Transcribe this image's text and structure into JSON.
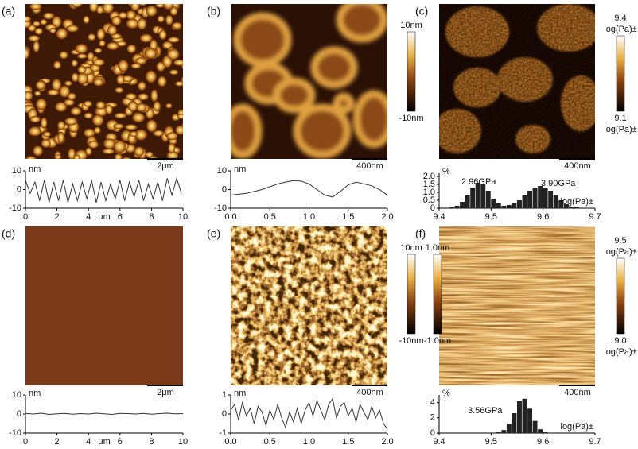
{
  "panels": [
    {
      "label": "(a)",
      "scale_bar": "2μm",
      "chart": {
        "type": "line",
        "y_label": "nm",
        "x_label": "μm",
        "color": "#333333",
        "x": [
          0,
          0.3,
          0.6,
          0.9,
          1.2,
          1.5,
          1.8,
          2.1,
          2.4,
          2.7,
          3,
          3.3,
          3.6,
          3.9,
          4.2,
          4.5,
          4.8,
          5.1,
          5.4,
          5.7,
          6,
          6.3,
          6.6,
          6.9,
          7.2,
          7.5,
          7.8,
          8.1,
          8.4,
          8.7,
          9,
          9.3,
          9.6,
          9.9
        ],
        "values": [
          5,
          -2,
          4,
          -6,
          5,
          -7,
          4,
          -6,
          5,
          -7,
          3,
          -6,
          4,
          -5,
          5,
          -7,
          4,
          -6,
          3,
          -5,
          5,
          -6,
          4,
          -4,
          5,
          -6,
          3,
          -5,
          4,
          -6,
          6,
          -3,
          6,
          -2
        ],
        "xlim": [
          0,
          10
        ],
        "ylim": [
          -10,
          10
        ],
        "xticks": [
          0,
          2,
          4,
          6,
          8,
          10
        ],
        "yticks": [
          10,
          0,
          -10
        ]
      }
    },
    {
      "label": "(b)",
      "scale_bar": "400nm",
      "chart": {
        "type": "line",
        "y_label": "nm",
        "color": "#333333",
        "x": [
          0,
          0.1,
          0.2,
          0.3,
          0.4,
          0.5,
          0.6,
          0.7,
          0.8,
          0.9,
          1,
          1.1,
          1.2,
          1.3,
          1.4,
          1.5,
          1.6,
          1.7,
          1.8,
          1.9,
          2
        ],
        "values": [
          -3,
          -2.5,
          -2,
          -1,
          0,
          1.5,
          3,
          4,
          4.8,
          4.5,
          3,
          0,
          -3,
          -4,
          -1,
          2.5,
          4,
          3,
          2,
          0,
          -3
        ],
        "xlim": [
          0,
          2
        ],
        "ylim": [
          -10,
          10
        ],
        "xticks": [
          {
            "value": 0,
            "label": "0.0"
          },
          0.5,
          {
            "value": 1,
            "label": "1.0"
          },
          1.5,
          {
            "value": 2,
            "label": "2.0"
          }
        ],
        "yticks": [
          10,
          0,
          -10
        ]
      }
    },
    {
      "label": "(c)",
      "scale_bar": "400nm",
      "chart": {
        "type": "histogram",
        "y_label": "%",
        "x_label": "log(Pa)±",
        "color": "#222222",
        "annotations": [
          "2.96GPa",
          "3.90GPa"
        ],
        "bins": [
          9.4,
          9.41,
          9.42,
          9.43,
          9.44,
          9.45,
          9.46,
          9.47,
          9.48,
          9.49,
          9.5,
          9.51,
          9.52,
          9.53,
          9.54,
          9.55,
          9.56,
          9.57,
          9.58,
          9.59,
          9.6,
          9.61,
          9.62,
          9.63,
          9.64,
          9.65,
          9.66,
          9.67,
          9.68,
          9.69,
          9.7
        ],
        "values": [
          0,
          0,
          0.05,
          0.15,
          0.4,
          0.8,
          1.3,
          1.6,
          1.5,
          1.1,
          0.6,
          0.3,
          0.15,
          0.2,
          0.3,
          0.5,
          0.8,
          1.1,
          1.3,
          1.4,
          1.3,
          1.1,
          0.8,
          0.5,
          0.25,
          0.1,
          0.05,
          0,
          0,
          0
        ],
        "xlim": [
          9.4,
          9.7
        ],
        "ylim": [
          0,
          2.2
        ],
        "xticks": [
          9.4,
          9.5,
          9.6,
          9.7
        ],
        "yticks": [
          0,
          0.5,
          {
            "value": 1,
            "label": "1.0"
          },
          1.5,
          {
            "value": 2,
            "label": "2.0"
          }
        ]
      }
    },
    {
      "label": "(d)",
      "scale_bar": "2μm",
      "chart": {
        "type": "line",
        "y_label": "nm",
        "x_label": "μm",
        "color": "#333333",
        "x": [
          0,
          0.5,
          1,
          1.5,
          2,
          2.5,
          3,
          3.5,
          4,
          4.5,
          5,
          5.5,
          6,
          6.5,
          7,
          7.5,
          8,
          8.5,
          9,
          9.5,
          10
        ],
        "values": [
          0.3,
          0,
          0.4,
          -0.2,
          0.1,
          0.3,
          -0.1,
          0.2,
          0,
          0.4,
          0.1,
          -0.2,
          0.3,
          0.2,
          0,
          0.3,
          -0.1,
          0.2,
          0.4,
          0.1,
          0.2
        ],
        "xlim": [
          0,
          10
        ],
        "ylim": [
          -10,
          10
        ],
        "xticks": [
          0,
          2,
          4,
          6,
          8,
          10
        ],
        "yticks": [
          10,
          0,
          -10
        ]
      }
    },
    {
      "label": "(e)",
      "scale_bar": "400nm",
      "chart": {
        "type": "line",
        "y_label": "nm",
        "color": "#333333",
        "x": [
          0,
          0.05,
          0.1,
          0.15,
          0.2,
          0.25,
          0.3,
          0.35,
          0.4,
          0.45,
          0.5,
          0.55,
          0.6,
          0.65,
          0.7,
          0.75,
          0.8,
          0.85,
          0.9,
          0.95,
          1,
          1.05,
          1.1,
          1.15,
          1.2,
          1.25,
          1.3,
          1.35,
          1.4,
          1.45,
          1.5,
          1.55,
          1.6,
          1.65,
          1.7,
          1.75,
          1.8,
          1.85,
          1.9,
          1.95,
          2
        ],
        "values": [
          0.2,
          0.5,
          -0.3,
          0.6,
          -0.1,
          0.3,
          -0.5,
          0.4,
          0.1,
          -0.6,
          0.2,
          -0.3,
          0.5,
          -0.2,
          -0.7,
          0.1,
          -0.4,
          0.3,
          -0.5,
          0.2,
          0.6,
          -0.1,
          0.7,
          0.2,
          -0.3,
          0.5,
          0.8,
          -0.2,
          0.4,
          0.6,
          -0.1,
          0.3,
          -0.4,
          0.5,
          0.1,
          -0.3,
          0.4,
          -0.2,
          0.2,
          -0.5,
          -0.8
        ],
        "xlim": [
          0,
          2
        ],
        "ylim": [
          -1,
          1
        ],
        "xticks": [
          {
            "value": 0,
            "label": "0.0"
          },
          0.5,
          {
            "value": 1,
            "label": "1.0"
          },
          1.5,
          {
            "value": 2,
            "label": "2.0"
          }
        ],
        "yticks": [
          1,
          0,
          -1
        ]
      }
    },
    {
      "label": "(f)",
      "scale_bar": "400nm",
      "chart": {
        "type": "histogram",
        "y_label": "%",
        "x_label": "log(Pa)±",
        "color": "#222222",
        "annotations": [
          "3.56GPa"
        ],
        "bins": [
          9.4,
          9.41,
          9.42,
          9.43,
          9.44,
          9.45,
          9.46,
          9.47,
          9.48,
          9.49,
          9.5,
          9.51,
          9.52,
          9.53,
          9.54,
          9.55,
          9.56,
          9.57,
          9.58,
          9.59,
          9.6,
          9.61,
          9.62,
          9.63,
          9.64,
          9.65,
          9.66,
          9.67,
          9.68,
          9.69,
          9.7
        ],
        "values": [
          0,
          0,
          0,
          0,
          0,
          0,
          0,
          0,
          0,
          0,
          0,
          0.1,
          0.4,
          1.2,
          2.6,
          4.2,
          4.5,
          3.2,
          1.6,
          0.5,
          0.1,
          0,
          0,
          0,
          0,
          0,
          0,
          0,
          0,
          0
        ],
        "xlim": [
          9.4,
          9.7
        ],
        "ylim": [
          0,
          5
        ],
        "xticks": [
          9.4,
          9.5,
          9.6,
          9.7
        ],
        "yticks": [
          0,
          2,
          4
        ]
      }
    }
  ],
  "colorbars": [
    {
      "top": [
        "10nm"
      ],
      "bottom": [
        "-10nm"
      ]
    },
    {
      "top": [
        "9.4",
        "log(Pa)±"
      ],
      "bottom": [
        "9.1",
        "log(Pa)±"
      ]
    },
    {
      "top": [
        "10nm"
      ],
      "bottom": [
        "-10nm"
      ]
    },
    {
      "top": [
        "1.0nm"
      ],
      "bottom": [
        "-1.0nm"
      ]
    },
    {
      "top": [
        "9.5",
        "log(Pa)±"
      ],
      "bottom": [
        "9.0",
        "log(Pa)±"
      ]
    }
  ]
}
